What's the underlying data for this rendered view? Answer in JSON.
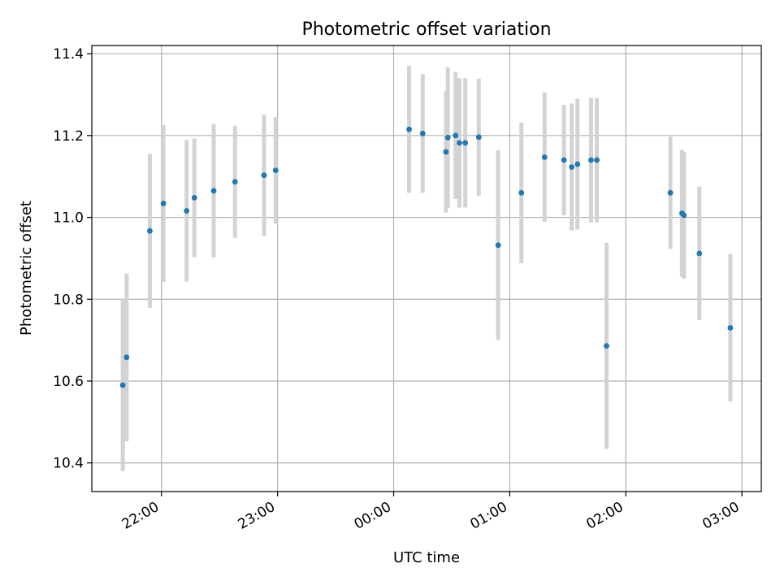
{
  "chart_data": {
    "type": "scatter",
    "title": "Photometric offset variation",
    "xlabel": "UTC time",
    "ylabel": "Photometric offset",
    "xlim": [
      "21:24",
      "03:10"
    ],
    "ylim": [
      10.33,
      11.42
    ],
    "x_ticks": [
      "22:00",
      "23:00",
      "00:00",
      "01:00",
      "02:00",
      "03:00"
    ],
    "y_ticks": [
      "10.4",
      "10.6",
      "10.8",
      "11.0",
      "11.2",
      "11.4"
    ],
    "grid": true,
    "marker_color": "#1f77b4",
    "errorbar_color": "#d3d3d3",
    "points": [
      {
        "time": "21:40",
        "y": 10.59,
        "err": 0.21
      },
      {
        "time": "21:42",
        "y": 10.658,
        "err": 0.205
      },
      {
        "time": "21:54",
        "y": 10.967,
        "err": 0.188
      },
      {
        "time": "22:01",
        "y": 11.034,
        "err": 0.192
      },
      {
        "time": "22:13",
        "y": 11.016,
        "err": 0.173
      },
      {
        "time": "22:17",
        "y": 11.048,
        "err": 0.145
      },
      {
        "time": "22:27",
        "y": 11.065,
        "err": 0.163
      },
      {
        "time": "22:38",
        "y": 11.087,
        "err": 0.137
      },
      {
        "time": "22:53",
        "y": 11.103,
        "err": 0.148
      },
      {
        "time": "22:59",
        "y": 11.115,
        "err": 0.13
      },
      {
        "time": "00:08",
        "y": 11.215,
        "err": 0.155
      },
      {
        "time": "00:15",
        "y": 11.205,
        "err": 0.145
      },
      {
        "time": "00:27",
        "y": 11.16,
        "err": 0.148
      },
      {
        "time": "00:28",
        "y": 11.195,
        "err": 0.172
      },
      {
        "time": "00:32",
        "y": 11.2,
        "err": 0.155
      },
      {
        "time": "00:34",
        "y": 11.182,
        "err": 0.158
      },
      {
        "time": "00:37",
        "y": 11.182,
        "err": 0.158
      },
      {
        "time": "00:44",
        "y": 11.196,
        "err": 0.143
      },
      {
        "time": "00:54",
        "y": 10.932,
        "err": 0.232
      },
      {
        "time": "01:06",
        "y": 11.06,
        "err": 0.172
      },
      {
        "time": "01:18",
        "y": 11.147,
        "err": 0.158
      },
      {
        "time": "01:28",
        "y": 11.14,
        "err": 0.135
      },
      {
        "time": "01:32",
        "y": 11.123,
        "err": 0.155
      },
      {
        "time": "01:35",
        "y": 11.13,
        "err": 0.16
      },
      {
        "time": "01:42",
        "y": 11.14,
        "err": 0.152
      },
      {
        "time": "01:45",
        "y": 11.14,
        "err": 0.152
      },
      {
        "time": "01:50",
        "y": 10.686,
        "err": 0.252
      },
      {
        "time": "02:23",
        "y": 11.06,
        "err": 0.137
      },
      {
        "time": "02:29",
        "y": 11.01,
        "err": 0.155
      },
      {
        "time": "02:30",
        "y": 11.005,
        "err": 0.155
      },
      {
        "time": "02:38",
        "y": 10.912,
        "err": 0.163
      },
      {
        "time": "02:54",
        "y": 10.73,
        "err": 0.18
      }
    ]
  }
}
